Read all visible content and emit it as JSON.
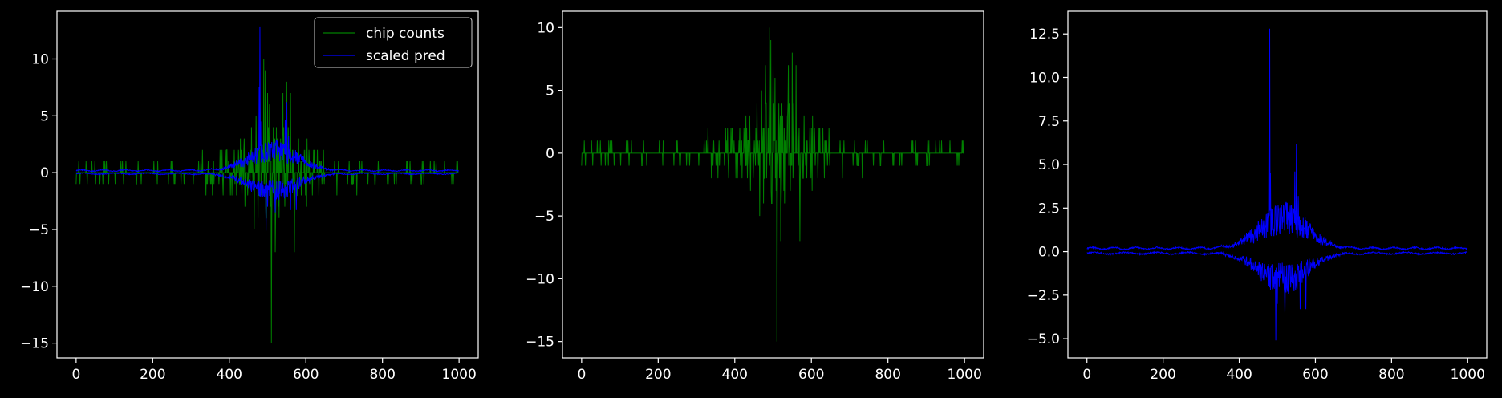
{
  "figure": {
    "background": "#000000",
    "foreground": "#ffffff"
  },
  "chart_data": [
    {
      "type": "line",
      "title": "",
      "xlabel": "",
      "ylabel": "",
      "xlim": [
        -50,
        1050
      ],
      "ylim": [
        -16.3,
        14.2
      ],
      "xticks": [
        0,
        200,
        400,
        600,
        800,
        1000
      ],
      "yticks": [
        -15,
        -10,
        -5,
        0,
        5,
        10
      ],
      "legend": {
        "placement": "top-right",
        "entries": [
          "chip counts",
          "scaled pred"
        ]
      },
      "series": [
        {
          "name": "chip counts",
          "color": "#008000",
          "kind": "counts"
        },
        {
          "name": "scaled pred",
          "color": "#0000ff",
          "kind": "pred"
        }
      ]
    },
    {
      "type": "line",
      "title": "",
      "xlabel": "",
      "ylabel": "",
      "xlim": [
        -50,
        1050
      ],
      "ylim": [
        -16.3,
        11.3
      ],
      "xticks": [
        0,
        200,
        400,
        600,
        800,
        1000
      ],
      "yticks": [
        -15,
        -10,
        -5,
        0,
        5,
        10
      ],
      "series": [
        {
          "color": "#008000",
          "kind": "counts"
        }
      ]
    },
    {
      "type": "line",
      "title": "",
      "xlabel": "",
      "ylabel": "",
      "xlim": [
        -50,
        1050
      ],
      "ylim": [
        -6.1,
        13.8
      ],
      "xticks": [
        0,
        200,
        400,
        600,
        800,
        1000
      ],
      "yticks": [
        -5.0,
        -2.5,
        0.0,
        2.5,
        5.0,
        7.5,
        10.0,
        12.5
      ],
      "ytick_labels": [
        "−5.0",
        "−2.5",
        "0.0",
        "2.5",
        "5.0",
        "7.5",
        "10.0",
        "12.5"
      ],
      "series": [
        {
          "color": "#0000ff",
          "kind": "pred"
        }
      ]
    }
  ],
  "signals": {
    "n_points": 1000,
    "counts_peaks": [
      {
        "x": 480,
        "y": 7
      },
      {
        "x": 490,
        "y": 10
      },
      {
        "x": 494,
        "y": 9
      },
      {
        "x": 500,
        "y": 7
      },
      {
        "x": 510,
        "y": -15
      },
      {
        "x": 520,
        "y": -7
      },
      {
        "x": 540,
        "y": 7
      },
      {
        "x": 550,
        "y": 8
      },
      {
        "x": 560,
        "y": 7
      },
      {
        "x": 570,
        "y": -7
      },
      {
        "x": 470,
        "y": 5
      },
      {
        "x": 530,
        "y": -4
      },
      {
        "x": 465,
        "y": -5
      },
      {
        "x": 505,
        "y": 6
      },
      {
        "x": 475,
        "y": -4
      }
    ],
    "pred_peaks": [
      {
        "x": 480,
        "y": 12.8
      },
      {
        "x": 478,
        "y": 7.5
      },
      {
        "x": 482,
        "y": 4.5
      },
      {
        "x": 550,
        "y": 6.2
      },
      {
        "x": 546,
        "y": 4.6
      },
      {
        "x": 555,
        "y": 3.2
      },
      {
        "x": 496,
        "y": -5.1
      },
      {
        "x": 500,
        "y": -3.0
      },
      {
        "x": 560,
        "y": -3.3
      },
      {
        "x": 575,
        "y": -3.3
      },
      {
        "x": 540,
        "y": 2.5
      },
      {
        "x": 520,
        "y": -3.5
      }
    ]
  }
}
